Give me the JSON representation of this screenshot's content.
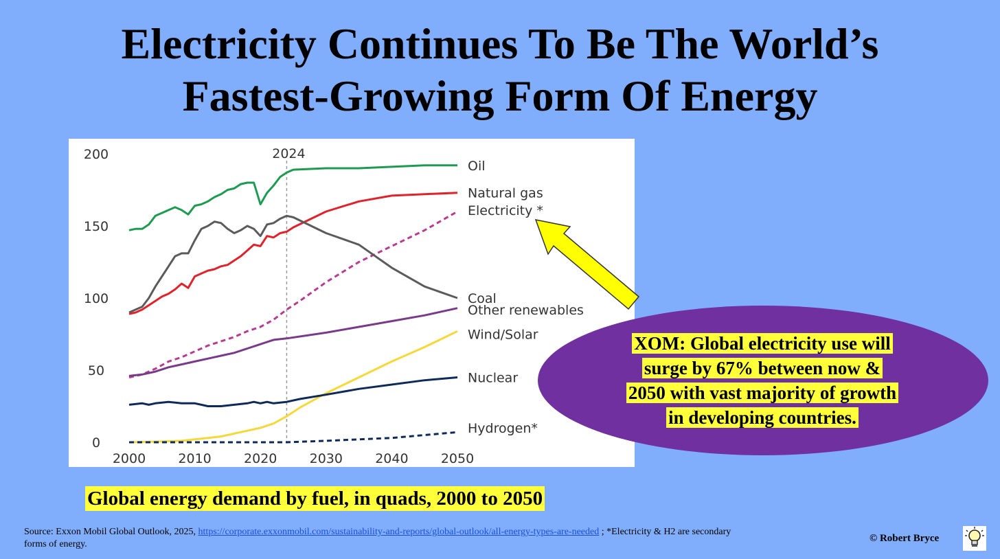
{
  "title": {
    "line1": "Electricity Continues To Be The World’s",
    "line2": "Fastest-Growing Form Of Energy"
  },
  "chart_data": {
    "type": "line",
    "title": "",
    "xlabel": "",
    "ylabel": "",
    "xlim": [
      2000,
      2050
    ],
    "ylim": [
      0,
      200
    ],
    "x_ticks": [
      "2000",
      "2010",
      "2020",
      "2030",
      "2040",
      "2050"
    ],
    "y_ticks": [
      "0",
      "50",
      "100",
      "150",
      "200"
    ],
    "vline": {
      "x": 2024,
      "label": "2024"
    },
    "series": [
      {
        "name": "Oil",
        "color": "#1e9b50",
        "dashed": false,
        "points": [
          [
            2000,
            147
          ],
          [
            2001,
            148
          ],
          [
            2002,
            148
          ],
          [
            2003,
            151
          ],
          [
            2004,
            157
          ],
          [
            2005,
            159
          ],
          [
            2006,
            161
          ],
          [
            2007,
            163
          ],
          [
            2008,
            161
          ],
          [
            2009,
            158
          ],
          [
            2010,
            164
          ],
          [
            2011,
            165
          ],
          [
            2012,
            167
          ],
          [
            2013,
            170
          ],
          [
            2014,
            172
          ],
          [
            2015,
            175
          ],
          [
            2016,
            176
          ],
          [
            2017,
            179
          ],
          [
            2018,
            180
          ],
          [
            2019,
            180
          ],
          [
            2020,
            165
          ],
          [
            2021,
            173
          ],
          [
            2022,
            178
          ],
          [
            2023,
            184
          ],
          [
            2024,
            187
          ],
          [
            2025,
            189
          ],
          [
            2030,
            190
          ],
          [
            2035,
            190
          ],
          [
            2040,
            191
          ],
          [
            2045,
            192
          ],
          [
            2050,
            192
          ]
        ]
      },
      {
        "name": "Natural gas",
        "color": "#e0232b",
        "dashed": false,
        "points": [
          [
            2000,
            89
          ],
          [
            2001,
            90
          ],
          [
            2002,
            92
          ],
          [
            2003,
            95
          ],
          [
            2004,
            98
          ],
          [
            2005,
            101
          ],
          [
            2006,
            103
          ],
          [
            2007,
            106
          ],
          [
            2008,
            110
          ],
          [
            2009,
            107
          ],
          [
            2010,
            115
          ],
          [
            2011,
            117
          ],
          [
            2012,
            119
          ],
          [
            2013,
            120
          ],
          [
            2014,
            122
          ],
          [
            2015,
            123
          ],
          [
            2016,
            126
          ],
          [
            2017,
            129
          ],
          [
            2018,
            133
          ],
          [
            2019,
            137
          ],
          [
            2020,
            136
          ],
          [
            2021,
            143
          ],
          [
            2022,
            142
          ],
          [
            2023,
            145
          ],
          [
            2024,
            146
          ],
          [
            2025,
            149
          ],
          [
            2030,
            160
          ],
          [
            2035,
            167
          ],
          [
            2040,
            171
          ],
          [
            2045,
            172
          ],
          [
            2050,
            173
          ]
        ]
      },
      {
        "name": "Electricity*",
        "color": "#b83c8e",
        "dashed": true,
        "points": [
          [
            2000,
            45
          ],
          [
            2002,
            47
          ],
          [
            2004,
            51
          ],
          [
            2006,
            56
          ],
          [
            2008,
            59
          ],
          [
            2010,
            63
          ],
          [
            2012,
            67
          ],
          [
            2014,
            70
          ],
          [
            2016,
            73
          ],
          [
            2018,
            77
          ],
          [
            2020,
            80
          ],
          [
            2022,
            85
          ],
          [
            2024,
            92
          ],
          [
            2026,
            98
          ],
          [
            2030,
            111
          ],
          [
            2035,
            125
          ],
          [
            2040,
            136
          ],
          [
            2045,
            147
          ],
          [
            2050,
            160
          ]
        ]
      },
      {
        "name": "Coal",
        "color": "#5b5b5b",
        "dashed": false,
        "points": [
          [
            2000,
            90
          ],
          [
            2001,
            92
          ],
          [
            2002,
            94
          ],
          [
            2003,
            100
          ],
          [
            2004,
            108
          ],
          [
            2005,
            115
          ],
          [
            2006,
            122
          ],
          [
            2007,
            129
          ],
          [
            2008,
            131
          ],
          [
            2009,
            131
          ],
          [
            2010,
            140
          ],
          [
            2011,
            148
          ],
          [
            2012,
            150
          ],
          [
            2013,
            153
          ],
          [
            2014,
            152
          ],
          [
            2015,
            148
          ],
          [
            2016,
            145
          ],
          [
            2017,
            147
          ],
          [
            2018,
            150
          ],
          [
            2019,
            148
          ],
          [
            2020,
            143
          ],
          [
            2021,
            151
          ],
          [
            2022,
            152
          ],
          [
            2023,
            155
          ],
          [
            2024,
            157
          ],
          [
            2025,
            156
          ],
          [
            2030,
            145
          ],
          [
            2035,
            137
          ],
          [
            2040,
            121
          ],
          [
            2045,
            108
          ],
          [
            2050,
            100
          ]
        ]
      },
      {
        "name": "Other renewables",
        "color": "#7a3a8a",
        "dashed": false,
        "points": [
          [
            2000,
            46
          ],
          [
            2002,
            47
          ],
          [
            2004,
            49
          ],
          [
            2006,
            52
          ],
          [
            2008,
            54
          ],
          [
            2010,
            56
          ],
          [
            2012,
            58
          ],
          [
            2014,
            60
          ],
          [
            2016,
            62
          ],
          [
            2018,
            65
          ],
          [
            2020,
            68
          ],
          [
            2022,
            71
          ],
          [
            2024,
            72
          ],
          [
            2030,
            76
          ],
          [
            2035,
            80
          ],
          [
            2040,
            84
          ],
          [
            2045,
            88
          ],
          [
            2050,
            93
          ]
        ]
      },
      {
        "name": "Wind/Solar",
        "color": "#f5d83a",
        "dashed": false,
        "points": [
          [
            2000,
            0
          ],
          [
            2005,
            0.5
          ],
          [
            2008,
            1
          ],
          [
            2010,
            2
          ],
          [
            2012,
            3
          ],
          [
            2014,
            4
          ],
          [
            2016,
            6
          ],
          [
            2018,
            8
          ],
          [
            2020,
            10
          ],
          [
            2022,
            13
          ],
          [
            2024,
            18
          ],
          [
            2026,
            24
          ],
          [
            2030,
            34
          ],
          [
            2035,
            45
          ],
          [
            2040,
            56
          ],
          [
            2045,
            66
          ],
          [
            2050,
            77
          ]
        ]
      },
      {
        "name": "Nuclear",
        "color": "#0d2a5a",
        "dashed": false,
        "points": [
          [
            2000,
            26
          ],
          [
            2002,
            27
          ],
          [
            2003,
            26
          ],
          [
            2004,
            27
          ],
          [
            2006,
            28
          ],
          [
            2008,
            27
          ],
          [
            2010,
            27
          ],
          [
            2011,
            26
          ],
          [
            2012,
            25
          ],
          [
            2014,
            25
          ],
          [
            2016,
            26
          ],
          [
            2018,
            27
          ],
          [
            2019,
            28
          ],
          [
            2020,
            27
          ],
          [
            2021,
            28
          ],
          [
            2022,
            27
          ],
          [
            2024,
            28
          ],
          [
            2026,
            30
          ],
          [
            2030,
            33
          ],
          [
            2035,
            37
          ],
          [
            2040,
            40
          ],
          [
            2045,
            43
          ],
          [
            2050,
            45
          ]
        ]
      },
      {
        "name": "Hydrogen*",
        "color": "#0d2a5a",
        "dashed": true,
        "points": [
          [
            2000,
            0
          ],
          [
            2024,
            0
          ],
          [
            2030,
            1
          ],
          [
            2035,
            2
          ],
          [
            2040,
            3
          ],
          [
            2045,
            5
          ],
          [
            2050,
            7
          ]
        ]
      }
    ],
    "labels": [
      {
        "text": "Oil",
        "value": 192
      },
      {
        "text": "Natural gas",
        "value": 173
      },
      {
        "text": "Electricity *",
        "value": 161
      },
      {
        "text": "Coal",
        "value": 100
      },
      {
        "text": "Other renewables",
        "value": 92
      },
      {
        "text": "Wind/Solar",
        "value": 75
      },
      {
        "text": "Nuclear",
        "value": 45
      },
      {
        "text": "Hydrogen*",
        "value": 10
      }
    ]
  },
  "callout": {
    "line1": "XOM: Global electricity use will",
    "line2": "surge by 67% between now &",
    "line3": "2050 with vast majority of growth",
    "line4": "in developing countries.",
    "ellipse_color": "#7030a0",
    "highlight_color": "#ffff3a",
    "arrow_color": "#ffff00"
  },
  "caption": "Global energy demand by fuel, in quads, 2000 to 2050",
  "source": {
    "prefix": "Source: Exxon Mobil Global Outlook, 2025,",
    "link": "https://corporate.exxonmobil.com/sustainability-and-reports/global-outlook/all-energy-types-are-needed",
    "suffix": "; *Electricity & H2 are secondary forms of energy."
  },
  "copyright": "© Robert Bryce",
  "logo_icon": "lightbulb-icon",
  "colors": {
    "background": "#80aefc",
    "panel": "#ffffff"
  }
}
